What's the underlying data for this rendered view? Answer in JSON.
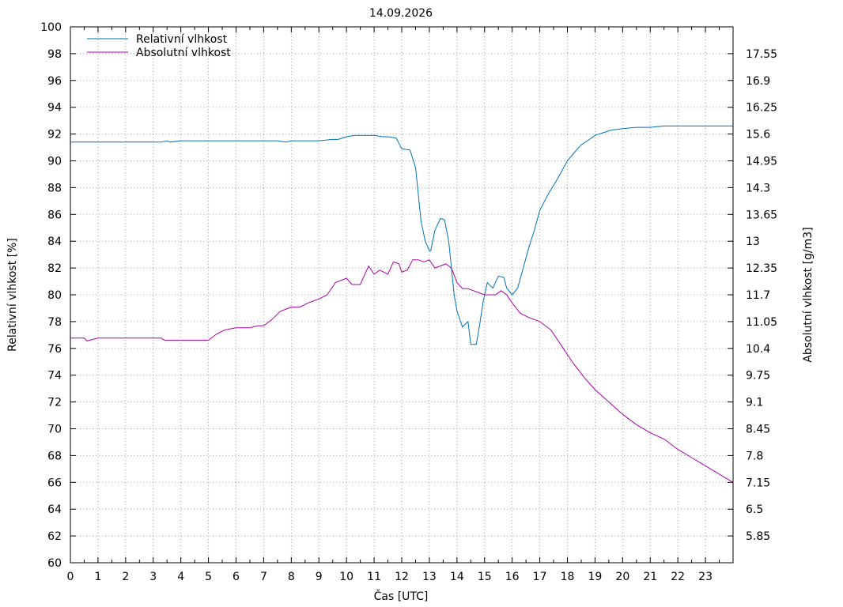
{
  "chart_data": {
    "type": "line",
    "title": "14.09.2026",
    "xlabel": "Čas [UTC]",
    "ylabel": "Relativní vlhkost [%]",
    "y2label": "Absolutní vlhkost [g/m3]",
    "xlim": [
      0,
      24
    ],
    "ylim": [
      60,
      100
    ],
    "y2lim": [
      5.2,
      18.2
    ],
    "x_ticks": [
      0,
      1,
      2,
      3,
      4,
      5,
      6,
      7,
      8,
      9,
      10,
      11,
      12,
      13,
      14,
      15,
      16,
      17,
      18,
      19,
      20,
      21,
      22,
      23
    ],
    "x_tick_labels": [
      "0",
      "1",
      "2",
      "3",
      "4",
      "5",
      "6",
      "7",
      "8",
      "9",
      "10",
      "11",
      "12",
      "13",
      "14",
      "15",
      "16",
      "17",
      "18",
      "19",
      "20",
      "21",
      "22",
      "23"
    ],
    "y_ticks": [
      60,
      62,
      64,
      66,
      68,
      70,
      72,
      74,
      76,
      78,
      80,
      82,
      84,
      86,
      88,
      90,
      92,
      94,
      96,
      98,
      100
    ],
    "y_tick_labels": [
      "60",
      "62",
      "64",
      "66",
      "68",
      "70",
      "72",
      "74",
      "76",
      "78",
      "80",
      "82",
      "84",
      "86",
      "88",
      "90",
      "92",
      "94",
      "96",
      "98",
      "100"
    ],
    "y2_ticks": [
      5.85,
      6.5,
      7.15,
      7.8,
      8.45,
      9.1,
      9.75,
      10.4,
      11.05,
      11.7,
      12.35,
      13,
      13.65,
      14.3,
      14.95,
      15.6,
      16.25,
      16.9,
      17.55
    ],
    "y2_tick_labels": [
      "5.85",
      "6.5",
      "7.15",
      "7.8",
      "8.45",
      "9.1",
      "9.75",
      "10.4",
      "11.05",
      "11.7",
      "12.35",
      "13",
      "13.65",
      "14.3",
      "14.95",
      "15.6",
      "16.25",
      "16.9",
      "17.55"
    ],
    "grid": true,
    "legend_position": "top-left",
    "series": [
      {
        "name": "Relativní vlhkost",
        "axis": "left",
        "color": "#0072b2",
        "x": [
          0,
          0.5,
          1,
          1.5,
          2,
          2.5,
          3,
          3.3,
          3.5,
          3.6,
          4,
          4.5,
          5,
          6,
          7,
          7.5,
          7.8,
          8,
          8.5,
          9,
          9.5,
          9.7,
          10,
          10.3,
          10.6,
          11,
          11.3,
          11.5,
          11.8,
          12,
          12.3,
          12.5,
          12.7,
          12.85,
          13,
          13.05,
          13.2,
          13.4,
          13.55,
          13.7,
          13.8,
          13.9,
          14,
          14.2,
          14.4,
          14.5,
          14.7,
          14.8,
          14.95,
          15.1,
          15.3,
          15.5,
          15.7,
          15.8,
          16,
          16.2,
          16.4,
          16.6,
          16.8,
          17,
          17.3,
          17.6,
          18,
          18.2,
          18.5,
          18.8,
          19,
          19.3,
          19.6,
          20,
          20.5,
          21,
          21.5,
          22,
          22.5,
          23,
          23.5,
          24
        ],
        "y": [
          91.4,
          91.4,
          91.4,
          91.4,
          91.4,
          91.4,
          91.4,
          91.4,
          91.5,
          91.4,
          91.5,
          91.5,
          91.5,
          91.5,
          91.5,
          91.5,
          91.4,
          91.5,
          91.5,
          91.5,
          91.6,
          91.6,
          91.8,
          91.9,
          91.9,
          91.9,
          91.8,
          91.8,
          91.7,
          90.9,
          90.8,
          89.5,
          85.5,
          84,
          83.3,
          83.3,
          84.8,
          85.7,
          85.6,
          84,
          82,
          80,
          78.8,
          77.6,
          78,
          76.3,
          76.3,
          77.5,
          79.5,
          80.9,
          80.5,
          81.4,
          81.3,
          80.5,
          80,
          80.5,
          82,
          83.5,
          84.8,
          86.3,
          87.5,
          88.5,
          90,
          90.5,
          91.2,
          91.6,
          91.9,
          92.1,
          92.3,
          92.4,
          92.5,
          92.5,
          92.6,
          92.6,
          92.6,
          92.6,
          92.6,
          92.6
        ]
      },
      {
        "name": "Absolutní vlhkost",
        "axis": "right",
        "color": "#aa00aa",
        "x": [
          0,
          0.5,
          0.6,
          1,
          2,
          3,
          3.3,
          3.4,
          3.6,
          4,
          4.5,
          5,
          5.3,
          5.6,
          6,
          6.5,
          6.8,
          7,
          7.3,
          7.6,
          8,
          8.3,
          8.6,
          9,
          9.3,
          9.6,
          10,
          10.2,
          10.5,
          10.8,
          11,
          11.2,
          11.5,
          11.7,
          11.9,
          12,
          12.2,
          12.4,
          12.6,
          12.8,
          13,
          13.2,
          13.4,
          13.6,
          13.8,
          14,
          14.2,
          14.4,
          14.6,
          14.8,
          15,
          15.2,
          15.4,
          15.6,
          15.8,
          16,
          16.3,
          16.6,
          17,
          17.4,
          17.8,
          18.2,
          18.6,
          19,
          19.5,
          20,
          20.5,
          21,
          21.5,
          22,
          22.5,
          23,
          23.5,
          24
        ],
        "y": [
          10.65,
          10.65,
          10.58,
          10.65,
          10.65,
          10.65,
          10.65,
          10.6,
          10.6,
          10.6,
          10.6,
          10.6,
          10.75,
          10.85,
          10.9,
          10.9,
          10.95,
          10.95,
          11.1,
          11.3,
          11.4,
          11.4,
          11.5,
          11.6,
          11.7,
          12.0,
          12.1,
          11.95,
          11.95,
          12.4,
          12.2,
          12.3,
          12.2,
          12.5,
          12.45,
          12.25,
          12.3,
          12.55,
          12.55,
          12.5,
          12.55,
          12.35,
          12.4,
          12.45,
          12.35,
          12.0,
          11.85,
          11.85,
          11.8,
          11.75,
          11.7,
          11.7,
          11.7,
          11.8,
          11.7,
          11.5,
          11.25,
          11.15,
          11.05,
          10.85,
          10.45,
          10.05,
          9.7,
          9.4,
          9.1,
          8.8,
          8.55,
          8.35,
          8.2,
          7.95,
          7.75,
          7.55,
          7.35,
          7.15
        ]
      }
    ]
  }
}
